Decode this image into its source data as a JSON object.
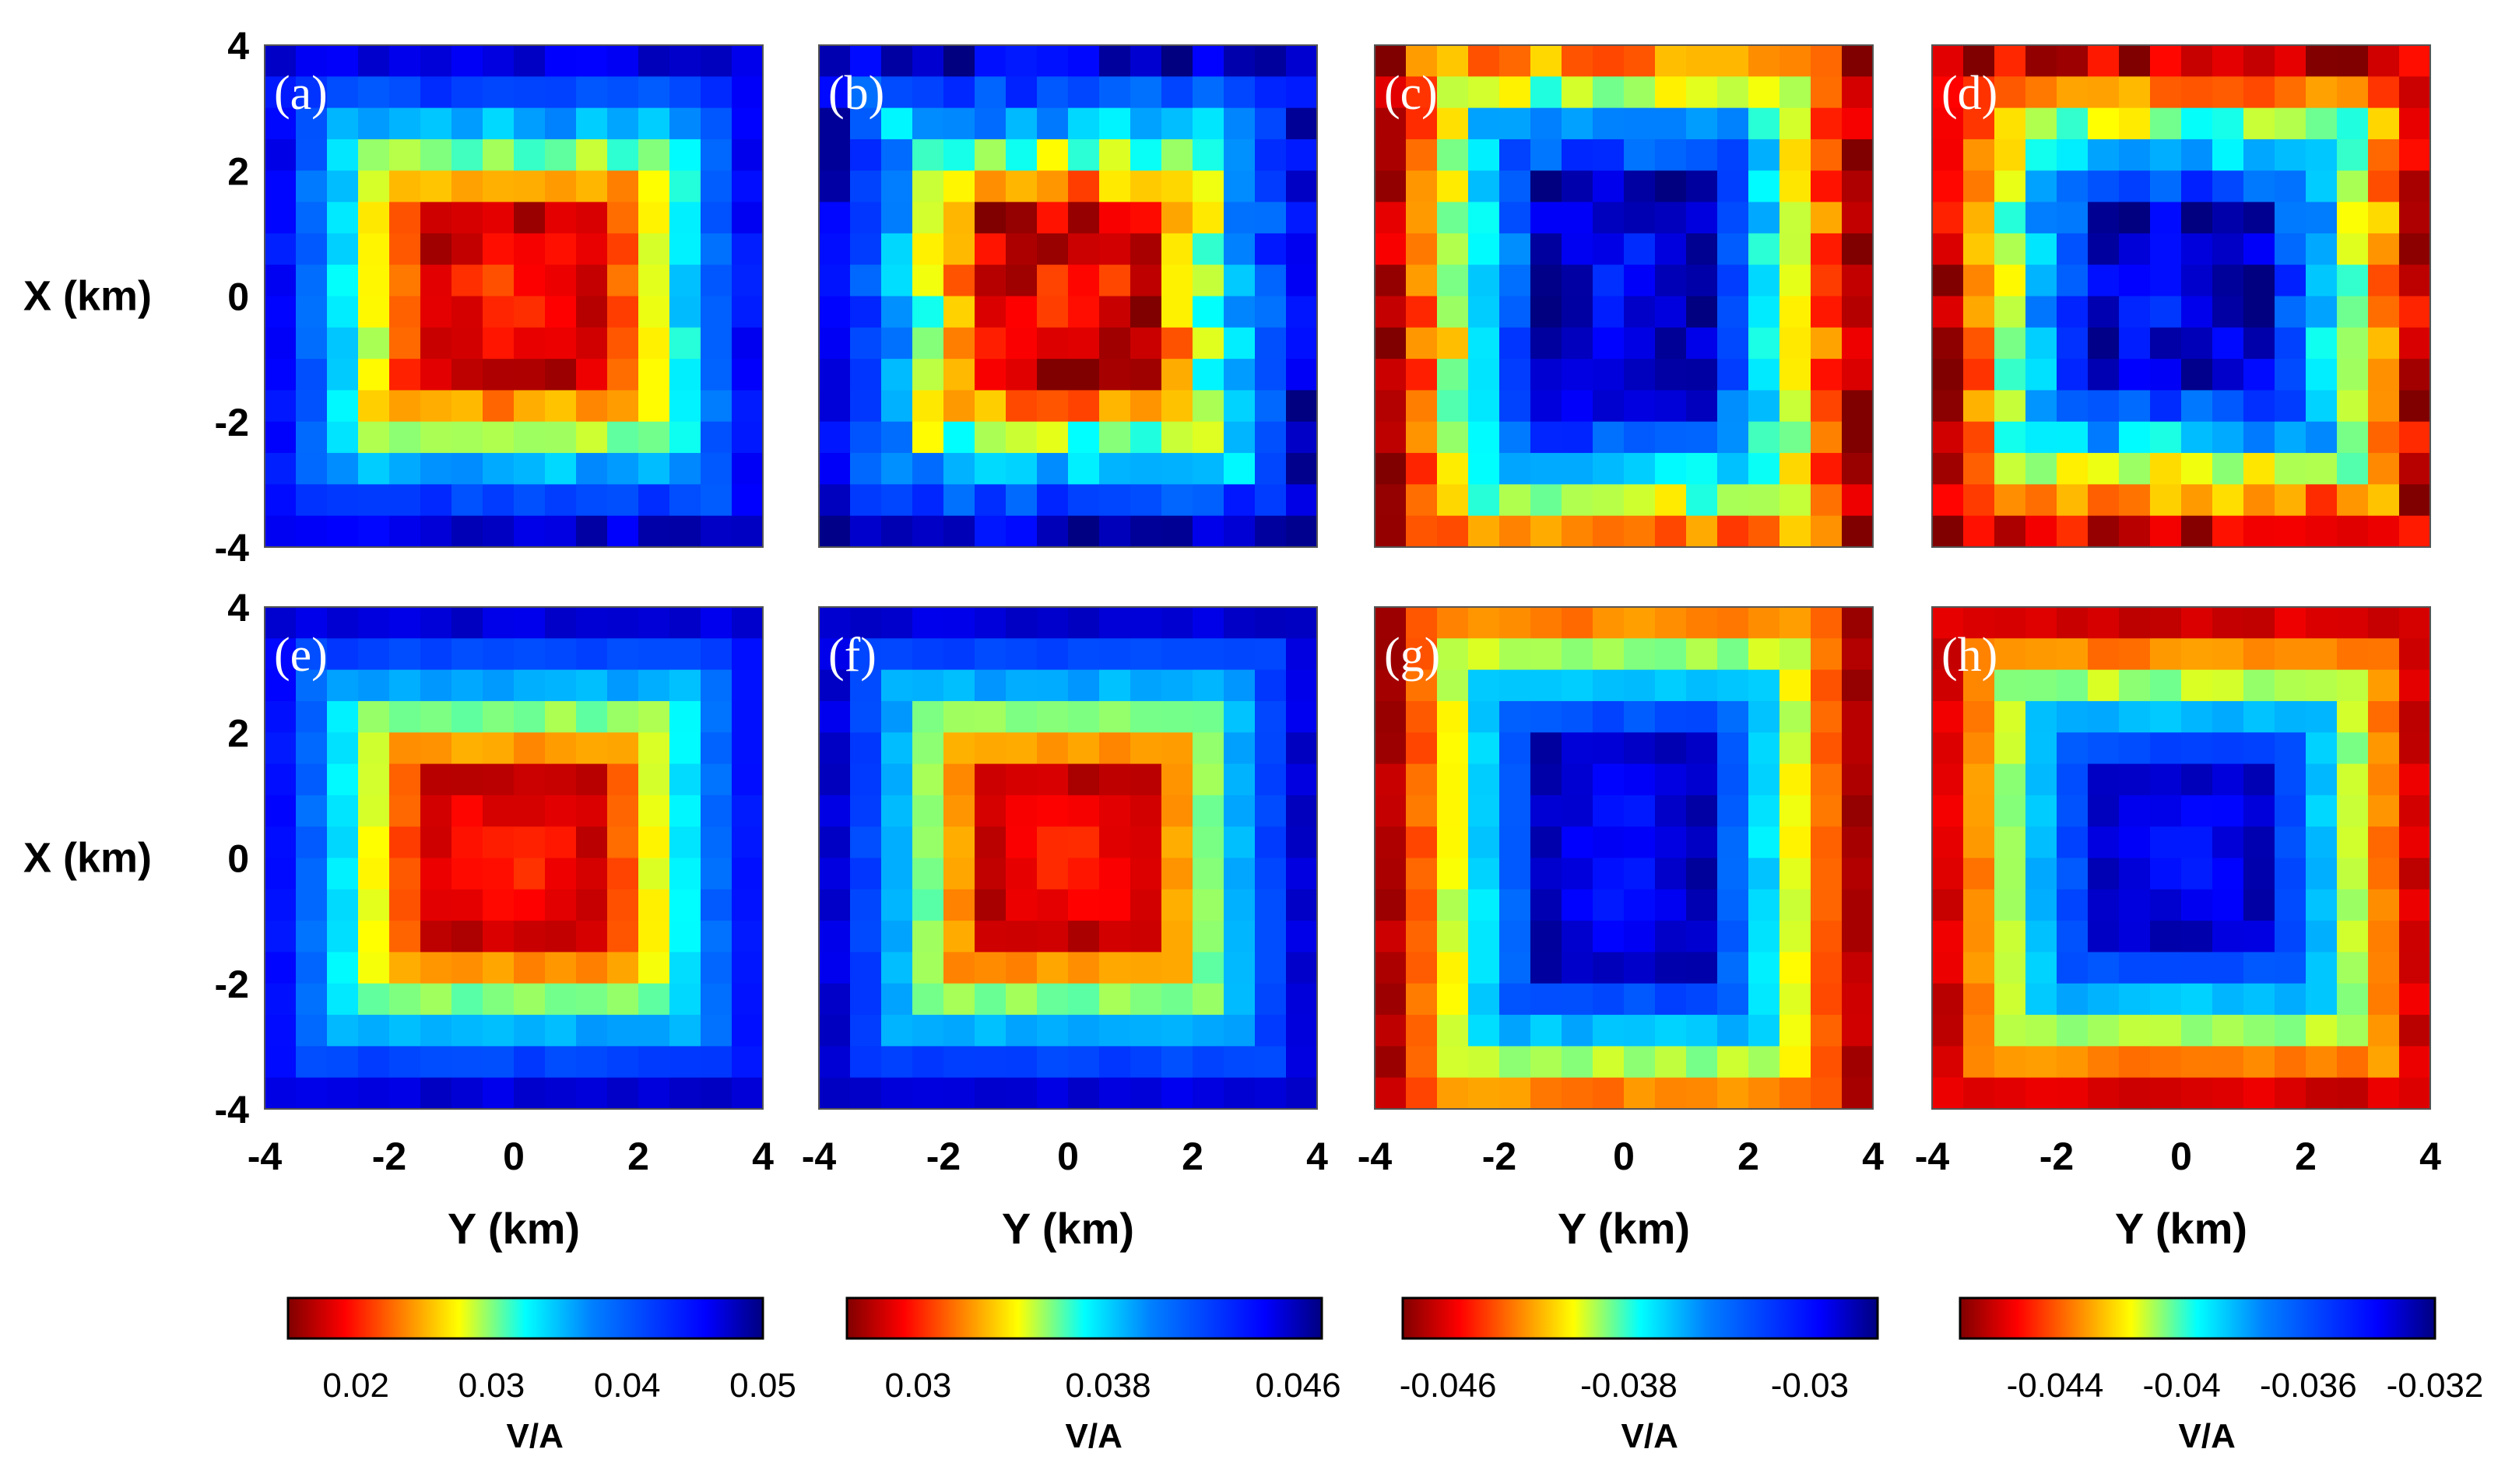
{
  "chart_data": {
    "type": "heatmap",
    "grid": 16,
    "x_ticks": [
      "-4",
      "-2",
      "0",
      "2",
      "4"
    ],
    "y_ticks": [
      "4",
      "2",
      "0",
      "-2",
      "-4"
    ],
    "xlabel": "Y (km)",
    "ylabel": "X (km)",
    "xlim": [
      -4,
      4
    ],
    "ylim": [
      -4,
      4
    ],
    "panels": [
      {
        "label": "(a)",
        "shape": "wide",
        "polarity": "positive",
        "inside": 0.02,
        "outside": 0.05,
        "noise": 0.1
      },
      {
        "label": "(b)",
        "shape": "square",
        "polarity": "positive",
        "inside": 0.03,
        "outside": 0.046,
        "noise": 0.18
      },
      {
        "label": "(c)",
        "shape": "tall",
        "polarity": "negative",
        "inside": -0.03,
        "outside": -0.046,
        "noise": 0.16
      },
      {
        "label": "(d)",
        "shape": "square",
        "polarity": "negative",
        "inside": -0.032,
        "outside": -0.044,
        "noise": 0.18
      },
      {
        "label": "(e)",
        "shape": "wide",
        "polarity": "positive",
        "inside": 0.02,
        "outside": 0.05,
        "noise": 0.05
      },
      {
        "label": "(f)",
        "shape": "square",
        "polarity": "positive",
        "inside": 0.03,
        "outside": 0.046,
        "noise": 0.05
      },
      {
        "label": "(g)",
        "shape": "tall",
        "polarity": "negative",
        "inside": -0.03,
        "outside": -0.046,
        "noise": 0.06
      },
      {
        "label": "(h)",
        "shape": "square",
        "polarity": "negative",
        "inside": -0.032,
        "outside": -0.044,
        "noise": 0.06
      }
    ],
    "colorbars": [
      {
        "ticks": [
          "0.02",
          "0.03",
          "0.04",
          "0.05"
        ],
        "unit": "V/A",
        "range": [
          0.015,
          0.05
        ]
      },
      {
        "ticks": [
          "0.03",
          "0.038",
          "0.046"
        ],
        "unit": "V/A",
        "range": [
          0.027,
          0.047
        ]
      },
      {
        "ticks": [
          "-0.046",
          "-0.038",
          "-0.03"
        ],
        "unit": "V/A",
        "range": [
          -0.048,
          -0.027
        ]
      },
      {
        "ticks": [
          "-0.044",
          "-0.04",
          "-0.036",
          "-0.032"
        ],
        "unit": "V/A",
        "range": [
          -0.047,
          -0.032
        ]
      }
    ],
    "colormap": "jet (reversed: red = low, blue = high)"
  }
}
